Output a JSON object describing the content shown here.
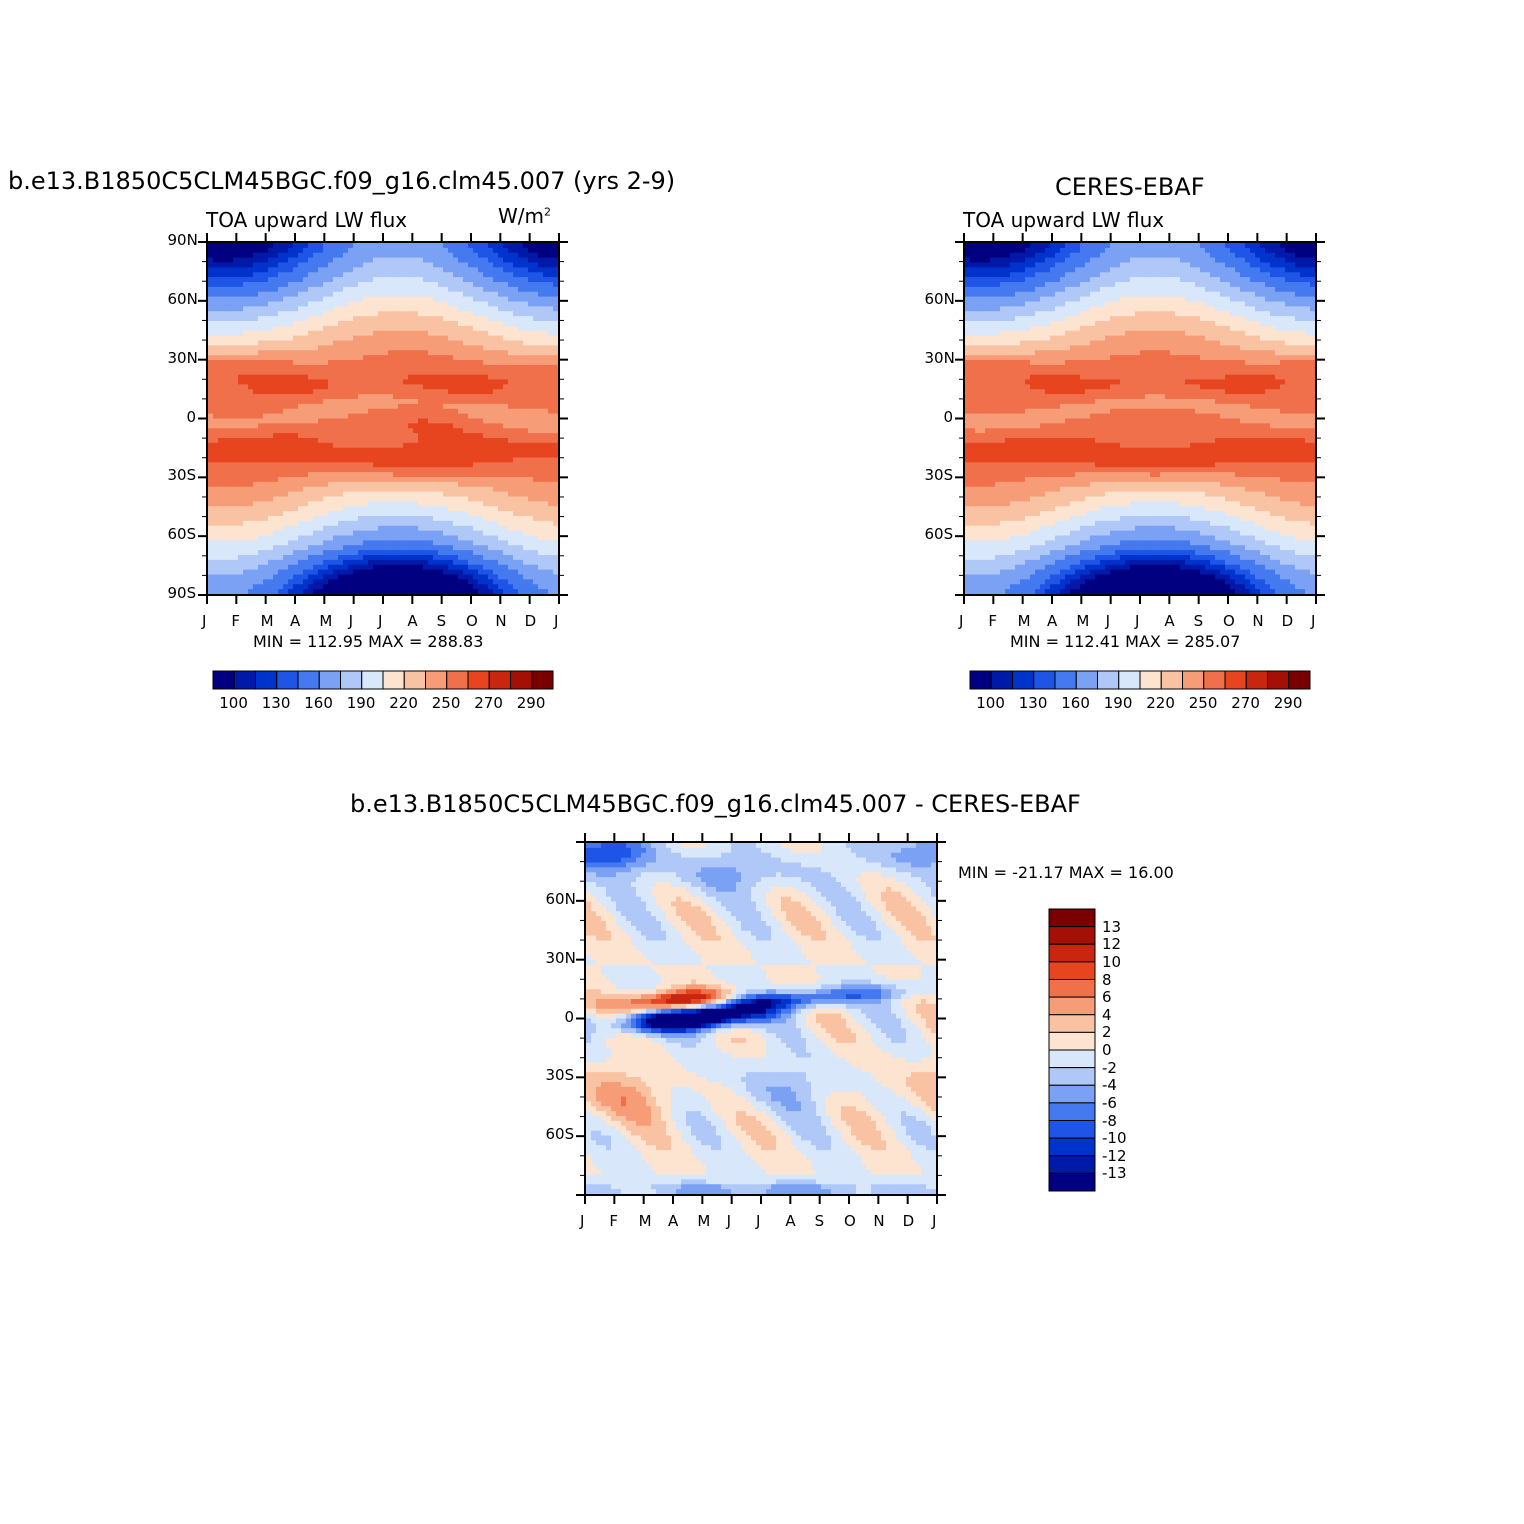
{
  "chart_data": [
    {
      "type": "heatmap",
      "title": "b.e13.B1850C5CLM45BGC.f09_g16.clm45.007 (yrs 2-9)",
      "subtitle": "TOA upward LW flux",
      "units": "W/m",
      "units_exp": "2",
      "x_ticks": [
        "J",
        "F",
        "M",
        "A",
        "M",
        "J",
        "J",
        "A",
        "S",
        "O",
        "N",
        "D",
        "J"
      ],
      "y_ticks": [
        "90N",
        "60N",
        "30N",
        "0",
        "30S",
        "60S",
        "90S"
      ],
      "min_max": "MIN = 112.95 MAX = 288.83",
      "colorbar_labels": [
        "100",
        "130",
        "160",
        "190",
        "220",
        "250",
        "270",
        "290"
      ],
      "ylim": [
        -90,
        90
      ],
      "xlim": [
        0,
        12
      ]
    },
    {
      "type": "heatmap",
      "title": "CERES-EBAF",
      "subtitle": "TOA upward LW flux",
      "x_ticks": [
        "J",
        "F",
        "M",
        "A",
        "M",
        "J",
        "J",
        "A",
        "S",
        "O",
        "N",
        "D",
        "J"
      ],
      "y_ticks": [
        "60N",
        "30N",
        "0",
        "30S",
        "60S"
      ],
      "min_max": "MIN = 112.41 MAX = 285.07",
      "colorbar_labels": [
        "100",
        "130",
        "160",
        "190",
        "220",
        "250",
        "270",
        "290"
      ],
      "ylim": [
        -90,
        90
      ],
      "xlim": [
        0,
        12
      ]
    },
    {
      "type": "heatmap",
      "title": "b.e13.B1850C5CLM45BGC.f09_g16.clm45.007 - CERES-EBAF",
      "x_ticks": [
        "J",
        "F",
        "M",
        "A",
        "M",
        "J",
        "J",
        "A",
        "S",
        "O",
        "N",
        "D",
        "J"
      ],
      "y_ticks": [
        "60N",
        "30N",
        "0",
        "30S",
        "60S"
      ],
      "min_max": "MIN = -21.17 MAX =   16.00",
      "colorbar_labels": [
        "13",
        "12",
        "10",
        "8",
        "6",
        "4",
        "2",
        "0",
        "-2",
        "-4",
        "-6",
        "-8",
        "-10",
        "-12",
        "-13"
      ],
      "ylim": [
        -90,
        90
      ],
      "xlim": [
        0,
        12
      ]
    }
  ],
  "colors": {
    "seq_palette": [
      "#000080",
      "#0019a8",
      "#0033cc",
      "#1f55e6",
      "#4479f0",
      "#7ba1f5",
      "#afc8f8",
      "#d8e7fa",
      "#fde4d0",
      "#f9c3a3",
      "#f69d78",
      "#f0704b",
      "#e6451f",
      "#c9260f",
      "#a51006",
      "#7a0000"
    ],
    "diff_palette": [
      "#7a0000",
      "#a51006",
      "#c9260f",
      "#e6451f",
      "#f0704b",
      "#f69d78",
      "#f9c3a3",
      "#fde4d0",
      "#d8e7fa",
      "#afc8f8",
      "#7ba1f5",
      "#4479f0",
      "#1f55e6",
      "#0033cc",
      "#0019a8",
      "#000080"
    ]
  }
}
